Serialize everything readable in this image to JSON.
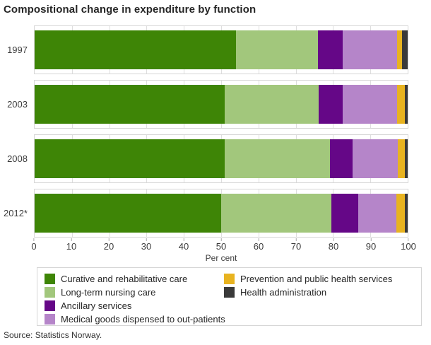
{
  "title": "Compositional change in expenditure by function",
  "source": "Source: Statistics Norway.",
  "chart_data": {
    "type": "bar",
    "orientation": "horizontal",
    "stacked": true,
    "title": "Compositional change in expenditure by function",
    "xlabel": "Per cent",
    "ylabel": "",
    "xlim": [
      0,
      100
    ],
    "xticks": [
      0,
      10,
      20,
      30,
      40,
      50,
      60,
      70,
      80,
      90,
      100
    ],
    "grid": true,
    "legend_position": "bottom",
    "categories": [
      "1997",
      "2003",
      "2008",
      "2012*"
    ],
    "series": [
      {
        "name": "Curative and rehabilitative care",
        "color": "#3e8506",
        "values": [
          54.0,
          51.0,
          51.0,
          50.0
        ]
      },
      {
        "name": "Long-term nursing care",
        "color": "#a2c77c",
        "values": [
          22.0,
          25.2,
          28.1,
          29.5
        ]
      },
      {
        "name": "Ancillary services",
        "color": "#650787",
        "values": [
          6.5,
          6.4,
          6.2,
          7.3
        ]
      },
      {
        "name": "Medical goods dispensed to out-patients",
        "color": "#b585c9",
        "values": [
          14.7,
          14.6,
          12.1,
          10.2
        ]
      },
      {
        "name": "Prevention and public health services",
        "color": "#e8b320",
        "values": [
          1.2,
          2.1,
          1.9,
          2.3
        ]
      },
      {
        "name": "Health administration",
        "color": "#3a3a3a",
        "values": [
          1.6,
          0.7,
          0.7,
          0.7
        ]
      }
    ],
    "legend_columns": [
      [
        0,
        1,
        2,
        3
      ],
      [
        4,
        5
      ]
    ]
  }
}
